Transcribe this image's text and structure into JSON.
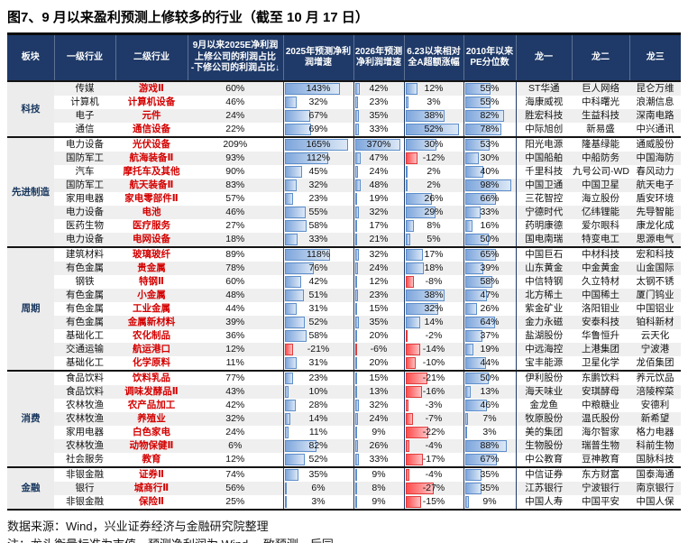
{
  "title": "图7、9 月以来盈利预测上修较多的行业（截至 10 月 17 日）",
  "colors": {
    "header_bg": "#1f3a68",
    "industry2_text": "#d40000",
    "positive_bar": "#7ea6dc",
    "negative_bar": "#ff4d4d",
    "stripe_bg": "#efefef"
  },
  "chart_data": {
    "type": "table",
    "title": "图7、9 月以来盈利预测上修较多的行业（截至 10 月 17 日）",
    "columns": [
      "板块",
      "一级行业",
      "二级行业",
      "9月以来2025E净利润\n上修公司的利润占比\n-下修公司的利润占比↓",
      "2025年预测净利润增速",
      "2026年预测净利润增速",
      "6.23以来相对全A超额涨幅",
      "2010年以来PE分位数",
      "龙一",
      "龙二",
      "龙三"
    ],
    "sections": [
      {
        "name": "科技",
        "rows": [
          {
            "industry1": "传媒",
            "industry2": "游戏Ⅱ",
            "ratio": 60,
            "g2025": 143,
            "g2026": 42,
            "excess": 12,
            "pe": 55,
            "l1": "ST华通",
            "l2": "巨人网络",
            "l3": "昆仑万维"
          },
          {
            "industry1": "计算机",
            "industry2": "计算机设备",
            "ratio": 46,
            "g2025": 32,
            "g2026": 23,
            "excess": 3,
            "pe": 55,
            "l1": "海康威视",
            "l2": "中科曙光",
            "l3": "浪潮信息"
          },
          {
            "industry1": "电子",
            "industry2": "元件",
            "ratio": 24,
            "g2025": 67,
            "g2026": 35,
            "excess": 38,
            "pe": 82,
            "l1": "胜宏科技",
            "l2": "生益科技",
            "l3": "深南电路"
          },
          {
            "industry1": "通信",
            "industry2": "通信设备",
            "ratio": 22,
            "g2025": 69,
            "g2026": 33,
            "excess": 52,
            "pe": 78,
            "l1": "中际旭创",
            "l2": "新易盛",
            "l3": "中兴通讯"
          }
        ]
      },
      {
        "name": "先进制造",
        "rows": [
          {
            "industry1": "电力设备",
            "industry2": "光伏设备",
            "ratio": 209,
            "g2025": 165,
            "g2026": 370,
            "excess": 30,
            "pe": 53,
            "l1": "阳光电源",
            "l2": "隆基绿能",
            "l3": "通威股份"
          },
          {
            "industry1": "国防军工",
            "industry2": "航海装备Ⅱ",
            "ratio": 93,
            "g2025": 112,
            "g2026": 47,
            "excess": -12,
            "pe": 30,
            "l1": "中国船舶",
            "l2": "中船防务",
            "l3": "中国海防"
          },
          {
            "industry1": "汽车",
            "industry2": "摩托车及其他",
            "ratio": 90,
            "g2025": 45,
            "g2026": 24,
            "excess": 2,
            "pe": 40,
            "l1": "千里科技",
            "l2": "九号公司-WD",
            "l3": "春风动力"
          },
          {
            "industry1": "国防军工",
            "industry2": "航天装备Ⅱ",
            "ratio": 83,
            "g2025": 32,
            "g2026": 48,
            "excess": 2,
            "pe": 98,
            "l1": "中国卫通",
            "l2": "中国卫星",
            "l3": "航天电子"
          },
          {
            "industry1": "家用电器",
            "industry2": "家电零部件Ⅱ",
            "ratio": 57,
            "g2025": 23,
            "g2026": 19,
            "excess": 26,
            "pe": 66,
            "l1": "三花智控",
            "l2": "海立股份",
            "l3": "盾安环境"
          },
          {
            "industry1": "电力设备",
            "industry2": "电池",
            "ratio": 46,
            "g2025": 55,
            "g2026": 32,
            "excess": 29,
            "pe": 33,
            "l1": "宁德时代",
            "l2": "亿纬锂能",
            "l3": "先导智能"
          },
          {
            "industry1": "医药生物",
            "industry2": "医疗服务",
            "ratio": 27,
            "g2025": 58,
            "g2026": 17,
            "excess": 8,
            "pe": 16,
            "l1": "药明康德",
            "l2": "爱尔眼科",
            "l3": "康龙化成"
          },
          {
            "industry1": "电力设备",
            "industry2": "电网设备",
            "ratio": 18,
            "g2025": 33,
            "g2026": 21,
            "excess": 5,
            "pe": 50,
            "l1": "国电南瑞",
            "l2": "特变电工",
            "l3": "思源电气"
          }
        ]
      },
      {
        "name": "周期",
        "rows": [
          {
            "industry1": "建筑材料",
            "industry2": "玻璃玻纤",
            "ratio": 89,
            "g2025": 118,
            "g2026": 32,
            "excess": 17,
            "pe": 65,
            "l1": "中国巨石",
            "l2": "中材科技",
            "l3": "宏和科技"
          },
          {
            "industry1": "有色金属",
            "industry2": "贵金属",
            "ratio": 78,
            "g2025": 76,
            "g2026": 24,
            "excess": 18,
            "pe": 39,
            "l1": "山东黄金",
            "l2": "中金黄金",
            "l3": "山金国际"
          },
          {
            "industry1": "钢铁",
            "industry2": "特钢Ⅱ",
            "ratio": 60,
            "g2025": 42,
            "g2026": 12,
            "excess": -8,
            "pe": 58,
            "l1": "中信特钢",
            "l2": "久立特材",
            "l3": "太钢不锈"
          },
          {
            "industry1": "有色金属",
            "industry2": "小金属",
            "ratio": 48,
            "g2025": 51,
            "g2026": 23,
            "excess": 38,
            "pe": 47,
            "l1": "北方稀土",
            "l2": "中国稀土",
            "l3": "厦门钨业"
          },
          {
            "industry1": "有色金属",
            "industry2": "工业金属",
            "ratio": 44,
            "g2025": 31,
            "g2026": 15,
            "excess": 32,
            "pe": 26,
            "l1": "紫金矿业",
            "l2": "洛阳钼业",
            "l3": "中国铝业"
          },
          {
            "industry1": "有色金属",
            "industry2": "金属新材料",
            "ratio": 39,
            "g2025": 52,
            "g2026": 35,
            "excess": 14,
            "pe": 64,
            "l1": "金力永磁",
            "l2": "安泰科技",
            "l3": "铂科新材"
          },
          {
            "industry1": "基础化工",
            "industry2": "农化制品",
            "ratio": 36,
            "g2025": 58,
            "g2026": 20,
            "excess": -2,
            "pe": 37,
            "l1": "盐湖股份",
            "l2": "华鲁恒升",
            "l3": "云天化"
          },
          {
            "industry1": "交通运输",
            "industry2": "航运港口",
            "ratio": 12,
            "g2025": -21,
            "g2026": -6,
            "excess": -14,
            "pe": 19,
            "l1": "中远海控",
            "l2": "上港集团",
            "l3": "宁波港"
          },
          {
            "industry1": "基础化工",
            "industry2": "化学原料",
            "ratio": 11,
            "g2025": 31,
            "g2026": 20,
            "excess": -10,
            "pe": 44,
            "l1": "宝丰能源",
            "l2": "卫星化学",
            "l3": "龙佰集团"
          }
        ]
      },
      {
        "name": "消费",
        "rows": [
          {
            "industry1": "食品饮料",
            "industry2": "饮料乳品",
            "ratio": 77,
            "g2025": 23,
            "g2026": 15,
            "excess": -21,
            "pe": 50,
            "l1": "伊利股份",
            "l2": "东鹏饮料",
            "l3": "养元饮品"
          },
          {
            "industry1": "食品饮料",
            "industry2": "调味发酵品Ⅱ",
            "ratio": 43,
            "g2025": 10,
            "g2026": 13,
            "excess": -16,
            "pe": 13,
            "l1": "海天味业",
            "l2": "安琪酵母",
            "l3": "涪陵榨菜"
          },
          {
            "industry1": "农林牧渔",
            "industry2": "农产品加工",
            "ratio": 42,
            "g2025": 28,
            "g2026": 32,
            "excess": -3,
            "pe": 46,
            "l1": "金龙鱼",
            "l2": "中粮糖业",
            "l3": "安德利"
          },
          {
            "industry1": "农林牧渔",
            "industry2": "养殖业",
            "ratio": 32,
            "g2025": 14,
            "g2026": 24,
            "excess": -7,
            "pe": 7,
            "l1": "牧原股份",
            "l2": "温氏股份",
            "l3": "新希望"
          },
          {
            "industry1": "家用电器",
            "industry2": "白色家电",
            "ratio": 24,
            "g2025": 11,
            "g2026": 9,
            "excess": -22,
            "pe": 3,
            "l1": "美的集团",
            "l2": "海尔智家",
            "l3": "格力电器"
          },
          {
            "industry1": "农林牧渔",
            "industry2": "动物保健Ⅱ",
            "ratio": 6,
            "g2025": 82,
            "g2026": 26,
            "excess": -4,
            "pe": 88,
            "l1": "生物股份",
            "l2": "瑞普生物",
            "l3": "科前生物"
          },
          {
            "industry1": "社会服务",
            "industry2": "教育",
            "ratio": 12,
            "g2025": 52,
            "g2026": 33,
            "excess": -17,
            "pe": 67,
            "l1": "中公教育",
            "l2": "豆神教育",
            "l3": "国脉科技"
          }
        ]
      },
      {
        "name": "金融",
        "rows": [
          {
            "industry1": "非银金融",
            "industry2": "证券Ⅱ",
            "ratio": 74,
            "g2025": 35,
            "g2026": 9,
            "excess": -4,
            "pe": 35,
            "l1": "中信证券",
            "l2": "东方财富",
            "l3": "国泰海通"
          },
          {
            "industry1": "银行",
            "industry2": "城商行Ⅱ",
            "ratio": 56,
            "g2025": 6,
            "g2026": 8,
            "excess": -27,
            "pe": 35,
            "l1": "江苏银行",
            "l2": "宁波银行",
            "l3": "南京银行"
          },
          {
            "industry1": "非银金融",
            "industry2": "保险Ⅱ",
            "ratio": 25,
            "g2025": 3,
            "g2026": 9,
            "excess": -15,
            "pe": 9,
            "l1": "中国人寿",
            "l2": "中国平安",
            "l3": "中国人保"
          }
        ]
      }
    ],
    "bar_axis_max": {
      "g2025": 165,
      "g2026": 370,
      "excess": 52,
      "pe": 100
    }
  },
  "footer": {
    "source": "数据来源：Wind，兴业证券经济与金融研究院整理",
    "note": "注：龙头衡量标准为市值，预测净利润为 Wind 一致预测，后同"
  }
}
